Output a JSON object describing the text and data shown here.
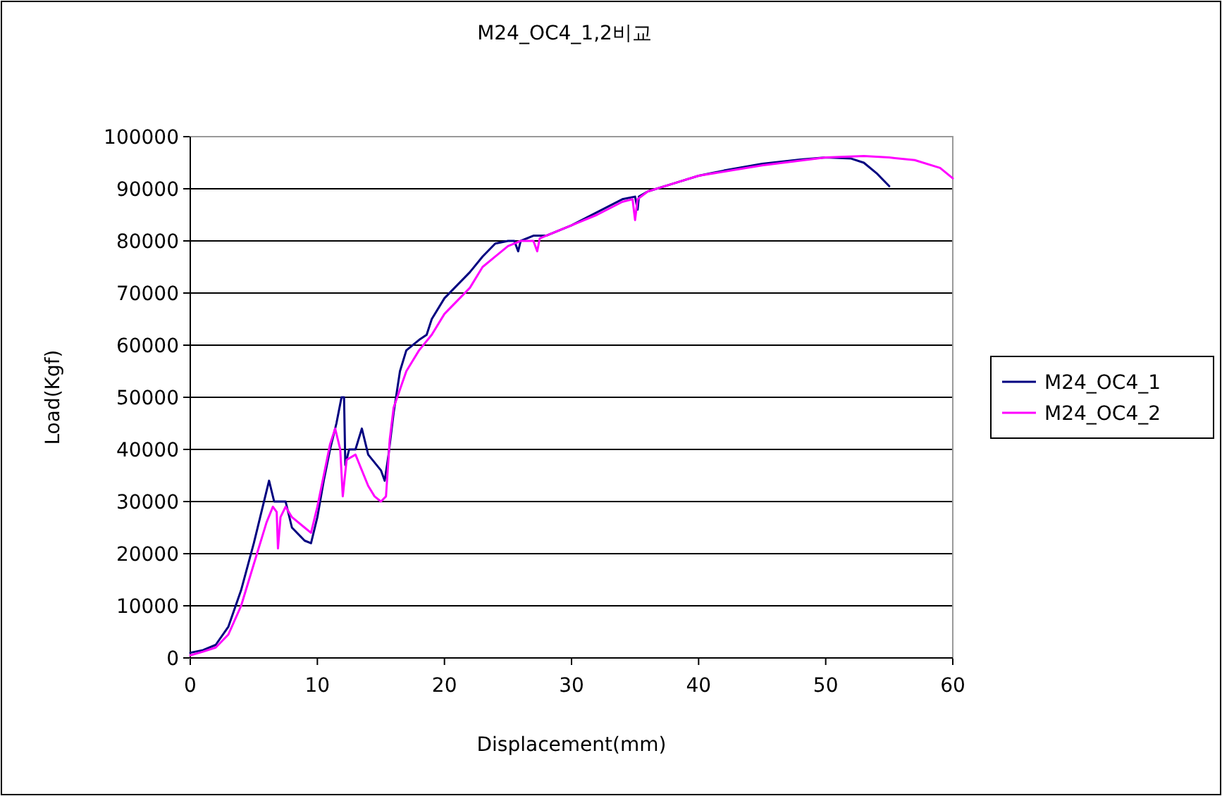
{
  "chart_data": {
    "type": "line",
    "title": "M24_OC4_1,2비교",
    "xlabel": "Displacement(mm)",
    "ylabel": "Load(Kgf)",
    "xlim": [
      0,
      60
    ],
    "xticks": [
      0,
      10,
      20,
      30,
      40,
      50,
      60
    ],
    "ylim": [
      0,
      100000
    ],
    "yticks": [
      0,
      10000,
      20000,
      30000,
      40000,
      50000,
      60000,
      70000,
      80000,
      90000,
      100000
    ],
    "grid": "y",
    "legend": "right",
    "marker": "none",
    "line_style": "solid",
    "series": [
      {
        "name": "M24_OC4_1",
        "color": "#000080",
        "x": [
          0,
          1,
          2,
          3,
          4,
          5,
          5.5,
          6,
          6.2,
          6.6,
          7,
          7.5,
          8,
          9,
          9.5,
          10,
          10.5,
          11,
          11.5,
          11.9,
          12.1,
          12.2,
          12.5,
          13,
          13.5,
          14,
          15,
          15.3,
          15.6,
          16,
          16.5,
          17,
          18,
          18.6,
          19,
          20,
          22,
          23,
          24,
          25,
          25.5,
          25.8,
          26,
          27,
          28,
          30,
          32,
          34,
          35,
          35.2,
          35.3,
          36,
          38,
          40,
          42,
          45,
          48,
          50,
          52,
          53,
          54,
          55
        ],
        "values": [
          1000,
          1500,
          2500,
          6000,
          13000,
          22000,
          27000,
          32000,
          34000,
          30000,
          30000,
          30000,
          25000,
          22500,
          22000,
          27000,
          34000,
          40000,
          45000,
          50000,
          50000,
          37000,
          40000,
          40000,
          44000,
          39000,
          36000,
          34000,
          39000,
          47000,
          55000,
          59000,
          61000,
          62000,
          65000,
          69000,
          74000,
          77000,
          79500,
          80000,
          80000,
          78000,
          80000,
          81000,
          81000,
          83000,
          85500,
          88000,
          88500,
          86000,
          88500,
          89500,
          91000,
          92500,
          93500,
          94800,
          95600,
          96000,
          95800,
          95000,
          93000,
          90500
        ]
      },
      {
        "name": "M24_OC4_2",
        "color": "#ff00ff",
        "x": [
          0,
          1,
          2,
          3,
          4,
          5,
          6,
          6.5,
          6.8,
          6.9,
          7.1,
          7.5,
          8,
          9,
          9.5,
          10,
          10.5,
          11,
          11.4,
          11.8,
          12,
          12.3,
          13,
          13.5,
          14,
          14.5,
          15,
          15.4,
          15.7,
          16,
          17,
          18,
          19,
          20,
          22,
          23,
          24,
          25,
          26,
          27,
          27.3,
          27.5,
          28,
          30,
          32,
          34,
          34.8,
          35,
          35.2,
          36,
          38,
          40,
          45,
          50,
          53,
          55,
          57,
          59,
          60
        ],
        "values": [
          500,
          1200,
          2000,
          4500,
          10000,
          18000,
          26000,
          29000,
          28000,
          21000,
          27000,
          29000,
          27000,
          25000,
          24000,
          29000,
          35000,
          41000,
          44000,
          40000,
          31000,
          38000,
          39000,
          36000,
          33000,
          31000,
          30000,
          31000,
          42000,
          48000,
          55000,
          59000,
          62000,
          66000,
          71000,
          75000,
          77000,
          79000,
          80000,
          80000,
          78000,
          80500,
          81000,
          83000,
          85000,
          87500,
          88000,
          84000,
          88000,
          89500,
          91000,
          92500,
          94500,
          96000,
          96300,
          96000,
          95500,
          94000,
          92000
        ]
      }
    ]
  }
}
